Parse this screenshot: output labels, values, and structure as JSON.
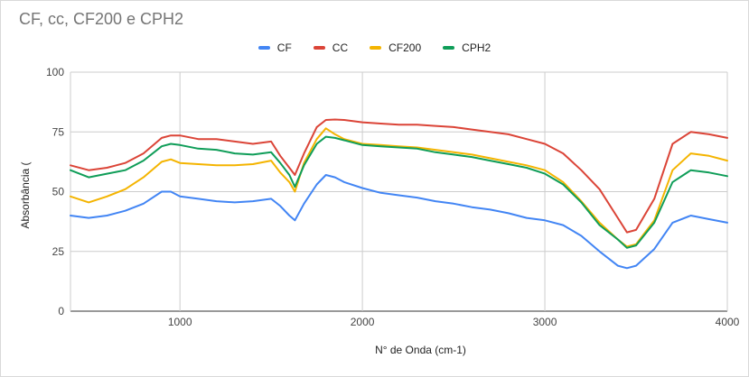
{
  "chart_data": {
    "type": "line",
    "title": "CF, cc, CF200 e CPH2",
    "xlabel": "N° de Onda (cm-1)",
    "ylabel": "Absorbância (",
    "xlim": [
      400,
      4000
    ],
    "ylim": [
      0,
      100
    ],
    "x_ticks": [
      "1000",
      "2000",
      "3000",
      "4000"
    ],
    "y_ticks": [
      "0",
      "25",
      "50",
      "75",
      "100"
    ],
    "grid": true,
    "legend_position": "top",
    "x": [
      400,
      500,
      600,
      700,
      800,
      900,
      950,
      1000,
      1100,
      1200,
      1300,
      1400,
      1500,
      1550,
      1600,
      1630,
      1680,
      1750,
      1800,
      1850,
      1900,
      2000,
      2100,
      2200,
      2300,
      2400,
      2500,
      2600,
      2700,
      2800,
      2900,
      3000,
      3100,
      3200,
      3300,
      3400,
      3450,
      3500,
      3600,
      3700,
      3800,
      3900,
      4000
    ],
    "series": [
      {
        "name": "CF",
        "color": "#4285f4",
        "values": [
          40,
          39,
          40,
          42,
          45,
          50,
          50,
          48,
          47,
          46,
          45.5,
          46,
          47,
          44,
          40,
          38,
          45,
          53,
          57,
          56,
          54,
          51.5,
          49.5,
          48.5,
          47.5,
          46,
          45,
          43.5,
          42.5,
          41,
          39,
          38,
          36,
          31.5,
          25,
          19,
          18,
          19,
          26,
          37,
          40,
          38.5,
          37
        ]
      },
      {
        "name": "CC",
        "color": "#db4437",
        "values": [
          61,
          59,
          60,
          62,
          66,
          72.5,
          73.5,
          73.5,
          72,
          72,
          71,
          70,
          71,
          65,
          60,
          57,
          66,
          77,
          80,
          80.2,
          80,
          79,
          78.5,
          78,
          78,
          77.5,
          77,
          76,
          75,
          74,
          72,
          70,
          66,
          59,
          51,
          39,
          33,
          34,
          47,
          70,
          75,
          74,
          72.5
        ]
      },
      {
        "name": "CF200",
        "color": "#f4b400",
        "values": [
          48,
          45.5,
          48,
          51,
          56,
          62.5,
          63.5,
          62,
          61.5,
          61,
          61,
          61.5,
          63,
          58,
          54,
          50,
          62,
          72,
          76.5,
          74,
          72,
          70,
          69.5,
          69,
          68.5,
          67.5,
          66.5,
          65.5,
          64,
          62.5,
          61,
          59,
          54,
          46,
          37,
          30,
          27,
          28,
          38,
          59,
          66,
          65,
          63
        ]
      },
      {
        "name": "CPH2",
        "color": "#0f9d58",
        "values": [
          59,
          56,
          57.5,
          59,
          63,
          69,
          70,
          69.5,
          68,
          67.5,
          66,
          65.5,
          66.5,
          62,
          57,
          52,
          61,
          70,
          73,
          72.5,
          71.5,
          69.5,
          69,
          68.5,
          68,
          66.5,
          65.5,
          64.5,
          63,
          61.5,
          60,
          57.5,
          53,
          45.5,
          36,
          30,
          26.5,
          27.5,
          37,
          54,
          59,
          58,
          56.5
        ]
      }
    ]
  }
}
